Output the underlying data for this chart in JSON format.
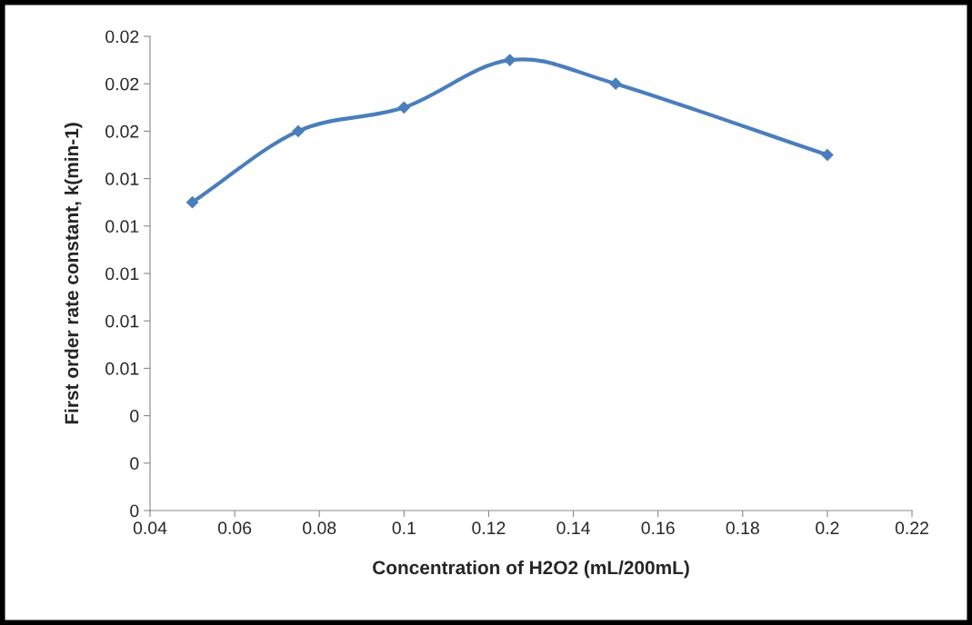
{
  "chart_data": {
    "type": "line",
    "xlabel": "Concentration of H2O2 (mL/200mL)",
    "ylabel": "First order rate constant, k(min-1)",
    "x": [
      0.05,
      0.075,
      0.1,
      0.125,
      0.15,
      0.2
    ],
    "series": [
      {
        "color": "#4a7ebb",
        "values": [
          0.013,
          0.016,
          0.017,
          0.019,
          0.018,
          0.015
        ]
      }
    ],
    "xlim": [
      0.04,
      0.22
    ],
    "xticks": [
      0.04,
      0.06,
      0.08,
      0.1,
      0.12,
      0.14,
      0.16,
      0.18,
      0.2,
      0.22
    ],
    "ylim": [
      0,
      0.02
    ],
    "yticks": [
      0,
      {
        "value": 0.002,
        "label": "0"
      },
      {
        "value": 0.004,
        "label": "0"
      },
      {
        "value": 0.006,
        "label": "0.01"
      },
      {
        "value": 0.008,
        "label": "0.01"
      },
      {
        "value": 0.01,
        "label": "0.01"
      },
      {
        "value": 0.012,
        "label": "0.01"
      },
      {
        "value": 0.014,
        "label": "0.01"
      },
      {
        "value": 0.016,
        "label": "0.02"
      },
      {
        "value": 0.018,
        "label": "0.02"
      },
      {
        "value": 0.02,
        "label": "0.02"
      }
    ],
    "grid": false,
    "legend": false,
    "marker": "diamond",
    "line_style": "solid"
  }
}
